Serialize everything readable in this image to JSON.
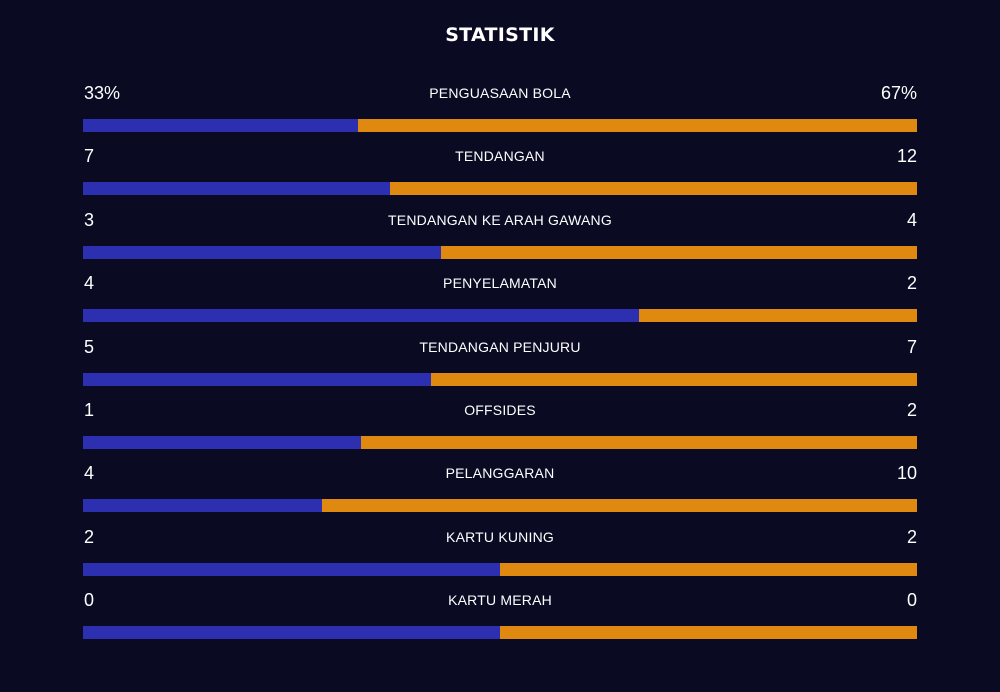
{
  "title": "STATISTIK",
  "colors": {
    "background": "#0a0a23",
    "home": "#2b2fb0",
    "away": "#e08910",
    "text": "#ffffff"
  },
  "stats": [
    {
      "label": "PENGUASAAN BOLA",
      "home": "33%",
      "away": "67%",
      "home_share": 0.33
    },
    {
      "label": "TENDANGAN",
      "home": "7",
      "away": "12",
      "home_share": 0.368
    },
    {
      "label": "TENDANGAN KE ARAH GAWANG",
      "home": "3",
      "away": "4",
      "home_share": 0.429
    },
    {
      "label": "PENYELAMATAN",
      "home": "4",
      "away": "2",
      "home_share": 0.667
    },
    {
      "label": "TENDANGAN PENJURU",
      "home": "5",
      "away": "7",
      "home_share": 0.417
    },
    {
      "label": "OFFSIDES",
      "home": "1",
      "away": "2",
      "home_share": 0.333
    },
    {
      "label": "PELANGGARAN",
      "home": "4",
      "away": "10",
      "home_share": 0.286
    },
    {
      "label": "KARTU KUNING",
      "home": "2",
      "away": "2",
      "home_share": 0.5
    },
    {
      "label": "KARTU MERAH",
      "home": "0",
      "away": "0",
      "home_share": 0.5
    }
  ]
}
